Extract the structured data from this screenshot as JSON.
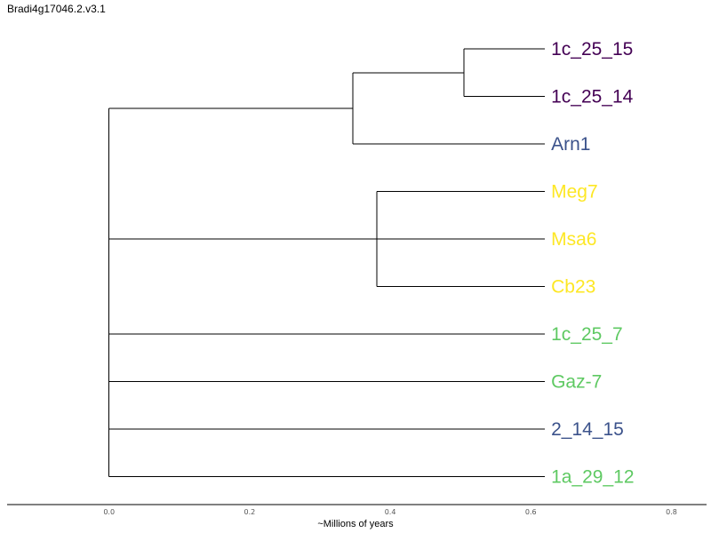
{
  "title": "Bradi4g17046.2.v3.1",
  "colors": {
    "dark_purple": "#440154",
    "blue": "#3b528b",
    "yellow": "#fde725",
    "green": "#5ec962",
    "branch": "#000000"
  },
  "axis": {
    "title": "~Millions of years",
    "range": [
      -0.145,
      0.85
    ],
    "ticks": [
      "0.0",
      "0.2",
      "0.4",
      "0.6",
      "0.8"
    ],
    "tick_values": [
      0.0,
      0.2,
      0.4,
      0.6,
      0.8
    ]
  },
  "tree": {
    "tips": [
      {
        "name": "1c_25_15",
        "color": "#440154"
      },
      {
        "name": "1c_25_14",
        "color": "#440154"
      },
      {
        "name": "Arn1",
        "color": "#3b528b"
      },
      {
        "name": "Meg7",
        "color": "#fde725"
      },
      {
        "name": "Msa6",
        "color": "#fde725"
      },
      {
        "name": "Cb23",
        "color": "#fde725"
      },
      {
        "name": "1c_25_7",
        "color": "#5ec962"
      },
      {
        "name": "Gaz-7",
        "color": "#5ec962"
      },
      {
        "name": "2_14_15",
        "color": "#3b528b"
      },
      {
        "name": "1a_29_12",
        "color": "#5ec962"
      }
    ],
    "tip_depth": 0.62,
    "nodes": [
      {
        "id": "root",
        "depth": 0.0,
        "children": [
          "n1",
          "n3",
          "n4",
          "n5",
          "n6",
          "n7"
        ]
      },
      {
        "id": "n1",
        "depth": 0.347,
        "children": [
          "n2",
          "tip:Arn1"
        ]
      },
      {
        "id": "n2",
        "depth": 0.505,
        "children": [
          "tip:1c_25_15",
          "tip:1c_25_14"
        ]
      },
      {
        "id": "n3",
        "depth": 0.381,
        "children": [
          "tip:Meg7",
          "tip:Msa6",
          "tip:Cb23"
        ]
      },
      {
        "id": "n4",
        "depth": 0.001,
        "children": [
          "tip:1c_25_7"
        ]
      },
      {
        "id": "n5",
        "depth": 0.001,
        "children": [
          "tip:Gaz-7"
        ]
      },
      {
        "id": "n6",
        "depth": 0.0,
        "children": [
          "tip:2_14_15"
        ]
      },
      {
        "id": "n7",
        "depth": 0.0,
        "children": [
          "tip:1a_29_12"
        ]
      }
    ]
  }
}
